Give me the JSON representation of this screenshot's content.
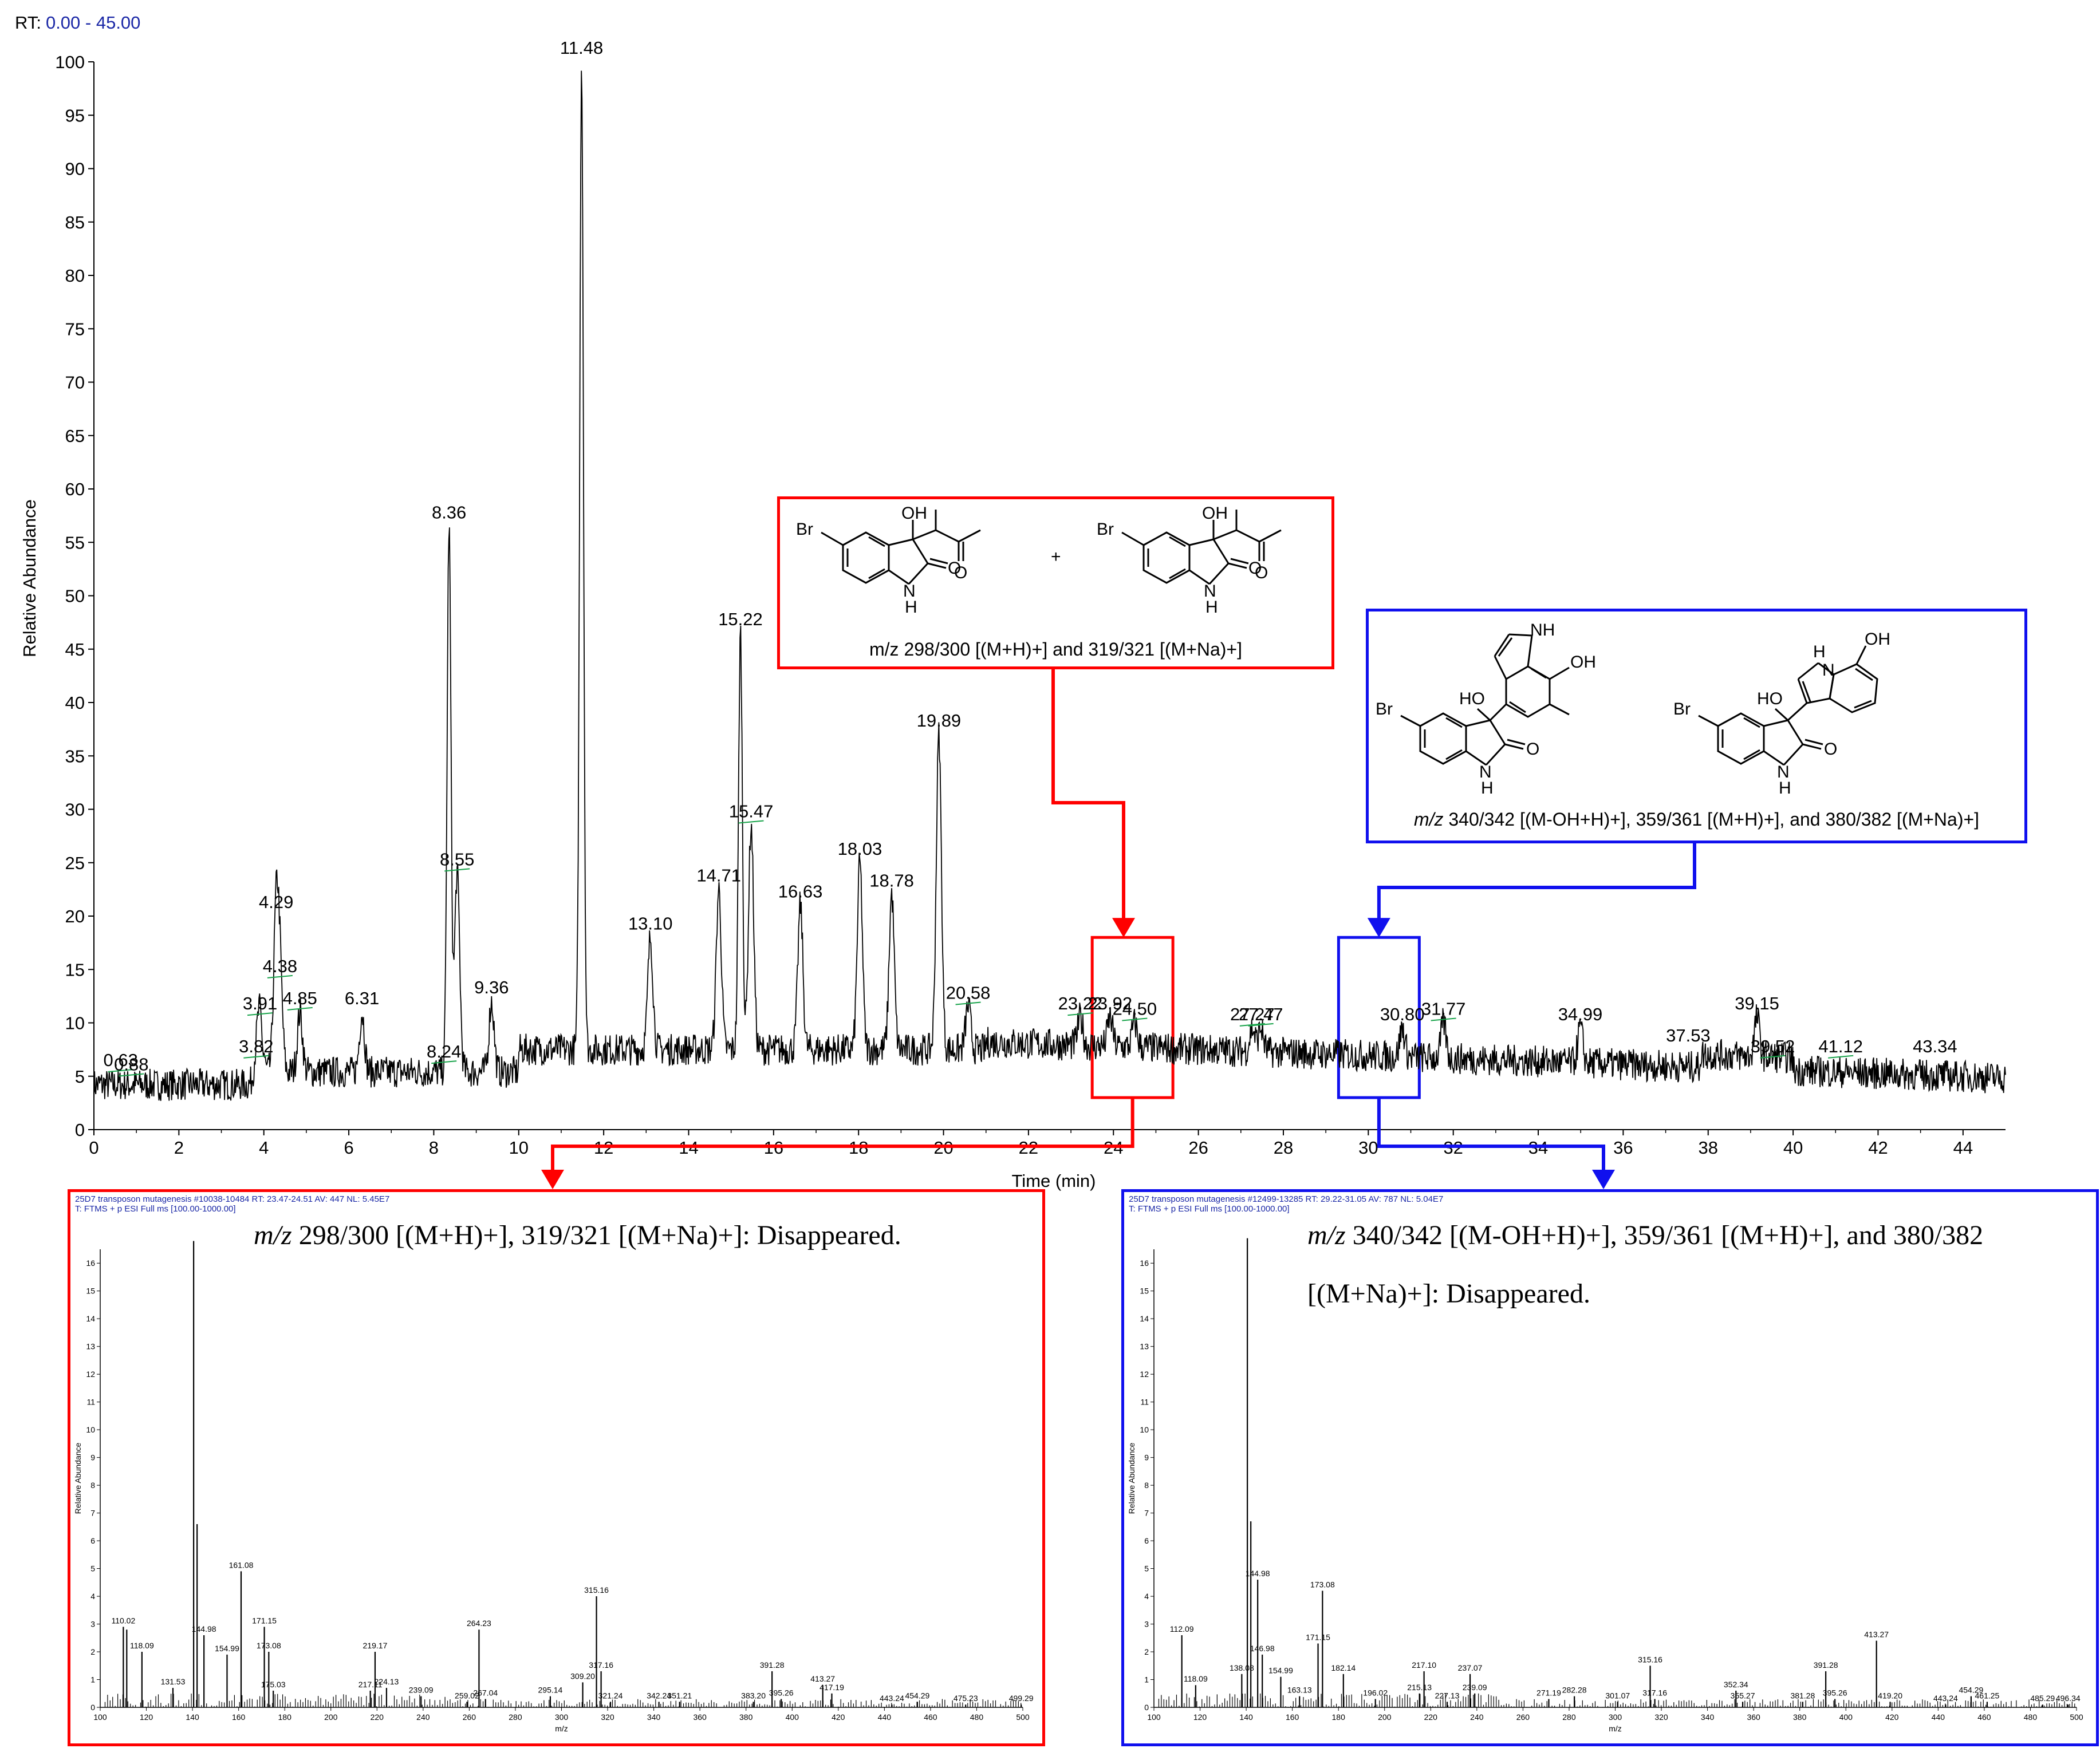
{
  "rt_label": "RT:",
  "rt_range": "0.00 - 45.00",
  "colors": {
    "red": "#ff0000",
    "blue": "#1010ee",
    "green": "#18a34a",
    "header_blue": "#1a27a6"
  },
  "chart_data": [
    {
      "type": "line",
      "title": "",
      "xlabel": "Time (min)",
      "ylabel": "Relative Abundance",
      "xlim": [
        0,
        45
      ],
      "ylim": [
        0,
        100
      ],
      "xticks": [
        0,
        2,
        4,
        6,
        8,
        10,
        12,
        14,
        16,
        18,
        20,
        22,
        24,
        26,
        28,
        30,
        32,
        34,
        36,
        38,
        40,
        42,
        44
      ],
      "yticks": [
        0,
        5,
        10,
        15,
        20,
        25,
        30,
        35,
        40,
        45,
        50,
        55,
        60,
        65,
        70,
        75,
        80,
        85,
        90,
        95,
        100
      ],
      "grid": false,
      "legend": "none",
      "labeled_peaks": [
        {
          "x": 0.63,
          "y": 5.2,
          "label": "0.63"
        },
        {
          "x": 0.88,
          "y": 4.8,
          "label": "0.88"
        },
        {
          "x": 3.82,
          "y": 6.5,
          "label": "3.82"
        },
        {
          "x": 3.91,
          "y": 10.5,
          "label": "3.91"
        },
        {
          "x": 4.29,
          "y": 20.0,
          "label": "4.29"
        },
        {
          "x": 4.38,
          "y": 14.0,
          "label": "4.38"
        },
        {
          "x": 4.85,
          "y": 11.0,
          "label": "4.85"
        },
        {
          "x": 6.31,
          "y": 11.0,
          "label": "6.31"
        },
        {
          "x": 8.24,
          "y": 6.0,
          "label": "8.24"
        },
        {
          "x": 8.36,
          "y": 56.5,
          "label": "8.36"
        },
        {
          "x": 8.55,
          "y": 24.0,
          "label": "8.55"
        },
        {
          "x": 9.36,
          "y": 12.0,
          "label": "9.36"
        },
        {
          "x": 11.48,
          "y": 100.0,
          "label": "11.48"
        },
        {
          "x": 13.1,
          "y": 18.0,
          "label": "13.10"
        },
        {
          "x": 14.71,
          "y": 22.5,
          "label": "14.71"
        },
        {
          "x": 15.22,
          "y": 46.5,
          "label": "15.22"
        },
        {
          "x": 15.47,
          "y": 28.5,
          "label": "15.47"
        },
        {
          "x": 16.63,
          "y": 21.0,
          "label": "16.63"
        },
        {
          "x": 18.03,
          "y": 25.0,
          "label": "18.03"
        },
        {
          "x": 18.78,
          "y": 22.0,
          "label": "18.78"
        },
        {
          "x": 19.89,
          "y": 37.0,
          "label": "19.89"
        },
        {
          "x": 20.58,
          "y": 11.5,
          "label": "20.58"
        },
        {
          "x": 23.22,
          "y": 10.5,
          "label": "23.22"
        },
        {
          "x": 23.92,
          "y": 10.5,
          "label": "23.92"
        },
        {
          "x": 24.5,
          "y": 10.0,
          "label": "24.50"
        },
        {
          "x": 27.27,
          "y": 9.5,
          "label": "27.27"
        },
        {
          "x": 27.47,
          "y": 9.5,
          "label": "27.47"
        },
        {
          "x": 30.8,
          "y": 9.5,
          "label": "30.80"
        },
        {
          "x": 31.77,
          "y": 10.0,
          "label": "31.77"
        },
        {
          "x": 34.99,
          "y": 9.5,
          "label": "34.99"
        },
        {
          "x": 37.53,
          "y": 7.5,
          "label": "37.53"
        },
        {
          "x": 39.15,
          "y": 10.5,
          "label": "39.15"
        },
        {
          "x": 39.52,
          "y": 6.5,
          "label": "39.52"
        },
        {
          "x": 41.12,
          "y": 6.5,
          "label": "41.12"
        },
        {
          "x": 43.34,
          "y": 6.5,
          "label": "43.34"
        }
      ],
      "highlight_windows": [
        {
          "x": [
            23.5,
            25.4
          ],
          "y": [
            3,
            18
          ],
          "color": "red"
        },
        {
          "x": [
            29.3,
            31.2
          ],
          "y": [
            3,
            18
          ],
          "color": "blue"
        }
      ]
    },
    {
      "type": "bar",
      "title": "",
      "xlabel": "m/z",
      "ylabel": "Relative Abundance",
      "header_line1": "25D7 transposon mutagenesis #10038-10484   RT: 23.47-24.51   AV: 447   NL: 5.45E7",
      "header_line2": "T: FTMS + p ESI Full ms [100.00-1000.00]",
      "note_prefix": "m/z",
      "note_text": " 298/300 [(M+H)+], 319/321 [(M+Na)+]: Disappeared.",
      "xlim": [
        100,
        500
      ],
      "ylim": [
        0,
        16.5
      ],
      "xticks": [
        100,
        120,
        140,
        160,
        180,
        200,
        220,
        240,
        260,
        280,
        300,
        320,
        340,
        360,
        380,
        400,
        420,
        440,
        460,
        480,
        500
      ],
      "yticks": [
        0,
        1,
        2,
        3,
        4,
        5,
        6,
        7,
        8,
        9,
        10,
        11,
        12,
        13,
        14,
        15,
        16
      ],
      "peaks": [
        {
          "mz": 110.02,
          "v": 2.9,
          "label": "110.02"
        },
        {
          "mz": 111.5,
          "v": 2.8
        },
        {
          "mz": 118.09,
          "v": 2.0,
          "label": "118.09"
        },
        {
          "mz": 131.53,
          "v": 0.7,
          "label": "131.53"
        },
        {
          "mz": 140.5,
          "v": 16.8
        },
        {
          "mz": 142.0,
          "v": 6.6
        },
        {
          "mz": 144.98,
          "v": 2.6,
          "label": "144.98"
        },
        {
          "mz": 154.99,
          "v": 1.9,
          "label": "154.99"
        },
        {
          "mz": 161.08,
          "v": 4.9,
          "label": "161.08"
        },
        {
          "mz": 171.15,
          "v": 2.9,
          "label": "171.15"
        },
        {
          "mz": 173.08,
          "v": 2.0,
          "label": "173.08"
        },
        {
          "mz": 175.03,
          "v": 0.6,
          "label": "175.03"
        },
        {
          "mz": 217.11,
          "v": 0.6,
          "label": "217.11"
        },
        {
          "mz": 219.17,
          "v": 2.0,
          "label": "219.17"
        },
        {
          "mz": 224.13,
          "v": 0.7,
          "label": "224.13"
        },
        {
          "mz": 239.09,
          "v": 0.4,
          "label": "239.09"
        },
        {
          "mz": 259.02,
          "v": 0.2,
          "label": "259.02"
        },
        {
          "mz": 264.23,
          "v": 2.8,
          "label": "264.23"
        },
        {
          "mz": 267.04,
          "v": 0.3,
          "label": "267.04"
        },
        {
          "mz": 295.14,
          "v": 0.4,
          "label": "295.14"
        },
        {
          "mz": 309.2,
          "v": 0.9,
          "label": "309.20"
        },
        {
          "mz": 315.16,
          "v": 4.0,
          "label": "315.16"
        },
        {
          "mz": 317.16,
          "v": 1.3,
          "label": "317.16"
        },
        {
          "mz": 321.24,
          "v": 0.2,
          "label": "321.24"
        },
        {
          "mz": 342.24,
          "v": 0.2,
          "label": "342.24"
        },
        {
          "mz": 351.21,
          "v": 0.2,
          "label": "351.21"
        },
        {
          "mz": 383.2,
          "v": 0.2,
          "label": "383.20"
        },
        {
          "mz": 391.28,
          "v": 1.3,
          "label": "391.28"
        },
        {
          "mz": 395.26,
          "v": 0.3,
          "label": "395.26"
        },
        {
          "mz": 413.27,
          "v": 0.8,
          "label": "413.27"
        },
        {
          "mz": 417.19,
          "v": 0.5,
          "label": "417.19"
        },
        {
          "mz": 443.24,
          "v": 0.1,
          "label": "443.24"
        },
        {
          "mz": 454.29,
          "v": 0.2,
          "label": "454.29"
        },
        {
          "mz": 475.23,
          "v": 0.1,
          "label": "475.23"
        },
        {
          "mz": 499.29,
          "v": 0.1,
          "label": "499.29"
        }
      ]
    },
    {
      "type": "bar",
      "title": "",
      "xlabel": "m/z",
      "ylabel": "Relative Abundance",
      "header_line1": "25D7 transposon mutagenesis #12499-13285   RT: 29.22-31.05   AV: 787   NL: 5.04E7",
      "header_line2": "T: FTMS + p ESI Full ms [100.00-1000.00]",
      "note_prefix": "m/z",
      "note_text": " 340/342 [(M-OH+H)+], 359/361 [(M+H)+], and 380/382",
      "note_text2": "[(M+Na)+]: Disappeared.",
      "xlim": [
        100,
        500
      ],
      "ylim": [
        0,
        16.5
      ],
      "xticks": [
        100,
        120,
        140,
        160,
        180,
        200,
        220,
        240,
        260,
        280,
        300,
        320,
        340,
        360,
        380,
        400,
        420,
        440,
        460,
        480,
        500
      ],
      "yticks": [
        0,
        1,
        2,
        3,
        4,
        5,
        6,
        7,
        8,
        9,
        10,
        11,
        12,
        13,
        14,
        15,
        16
      ],
      "peaks": [
        {
          "mz": 112.09,
          "v": 2.6,
          "label": "112.09"
        },
        {
          "mz": 118.09,
          "v": 0.8,
          "label": "118.09"
        },
        {
          "mz": 138.08,
          "v": 1.2,
          "label": "138.08"
        },
        {
          "mz": 140.5,
          "v": 16.9
        },
        {
          "mz": 142.0,
          "v": 6.7
        },
        {
          "mz": 144.98,
          "v": 4.6,
          "label": "144.98"
        },
        {
          "mz": 146.98,
          "v": 1.9,
          "label": "146.98"
        },
        {
          "mz": 154.99,
          "v": 1.1,
          "label": "154.99"
        },
        {
          "mz": 163.13,
          "v": 0.4,
          "label": "163.13"
        },
        {
          "mz": 171.15,
          "v": 2.3,
          "label": "171.15"
        },
        {
          "mz": 173.08,
          "v": 4.2,
          "label": "173.08"
        },
        {
          "mz": 182.14,
          "v": 1.2,
          "label": "182.14"
        },
        {
          "mz": 196.02,
          "v": 0.3,
          "label": "196.02"
        },
        {
          "mz": 215.13,
          "v": 0.5,
          "label": "215.13"
        },
        {
          "mz": 217.1,
          "v": 1.3,
          "label": "217.10"
        },
        {
          "mz": 227.13,
          "v": 0.2,
          "label": "227.13"
        },
        {
          "mz": 237.07,
          "v": 1.2,
          "label": "237.07"
        },
        {
          "mz": 239.09,
          "v": 0.5,
          "label": "239.09"
        },
        {
          "mz": 271.19,
          "v": 0.3,
          "label": "271.19"
        },
        {
          "mz": 282.28,
          "v": 0.4,
          "label": "282.28"
        },
        {
          "mz": 301.07,
          "v": 0.2,
          "label": "301.07"
        },
        {
          "mz": 315.16,
          "v": 1.5,
          "label": "315.16"
        },
        {
          "mz": 317.16,
          "v": 0.3,
          "label": "317.16"
        },
        {
          "mz": 352.34,
          "v": 0.6,
          "label": "352.34"
        },
        {
          "mz": 355.27,
          "v": 0.2,
          "label": "355.27"
        },
        {
          "mz": 381.28,
          "v": 0.2,
          "label": "381.28"
        },
        {
          "mz": 391.28,
          "v": 1.3,
          "label": "391.28"
        },
        {
          "mz": 395.26,
          "v": 0.3,
          "label": "395.26"
        },
        {
          "mz": 413.27,
          "v": 2.4,
          "label": "413.27"
        },
        {
          "mz": 419.2,
          "v": 0.2,
          "label": "419.20"
        },
        {
          "mz": 443.24,
          "v": 0.1,
          "label": "443.24"
        },
        {
          "mz": 454.29,
          "v": 0.4,
          "label": "454.29"
        },
        {
          "mz": 461.25,
          "v": 0.2,
          "label": "461.25"
        },
        {
          "mz": 485.29,
          "v": 0.1,
          "label": "485.29"
        },
        {
          "mz": 496.34,
          "v": 0.1,
          "label": "496.34"
        }
      ]
    }
  ],
  "structures": {
    "red_caption": "m/z 298/300 [(M+H)+] and 319/321 [(M+Na)+]",
    "blue_caption_prefix": "m/z",
    "blue_caption": " 340/342 [(M-OH+H)+], 359/361 [(M+H)+], and 380/382 [(M+Na)+]",
    "atoms": {
      "br": "Br",
      "oh": "OH",
      "ho": "HO",
      "nh": "NH",
      "n": "N",
      "h": "H",
      "o": "O",
      "plus": "+"
    }
  }
}
